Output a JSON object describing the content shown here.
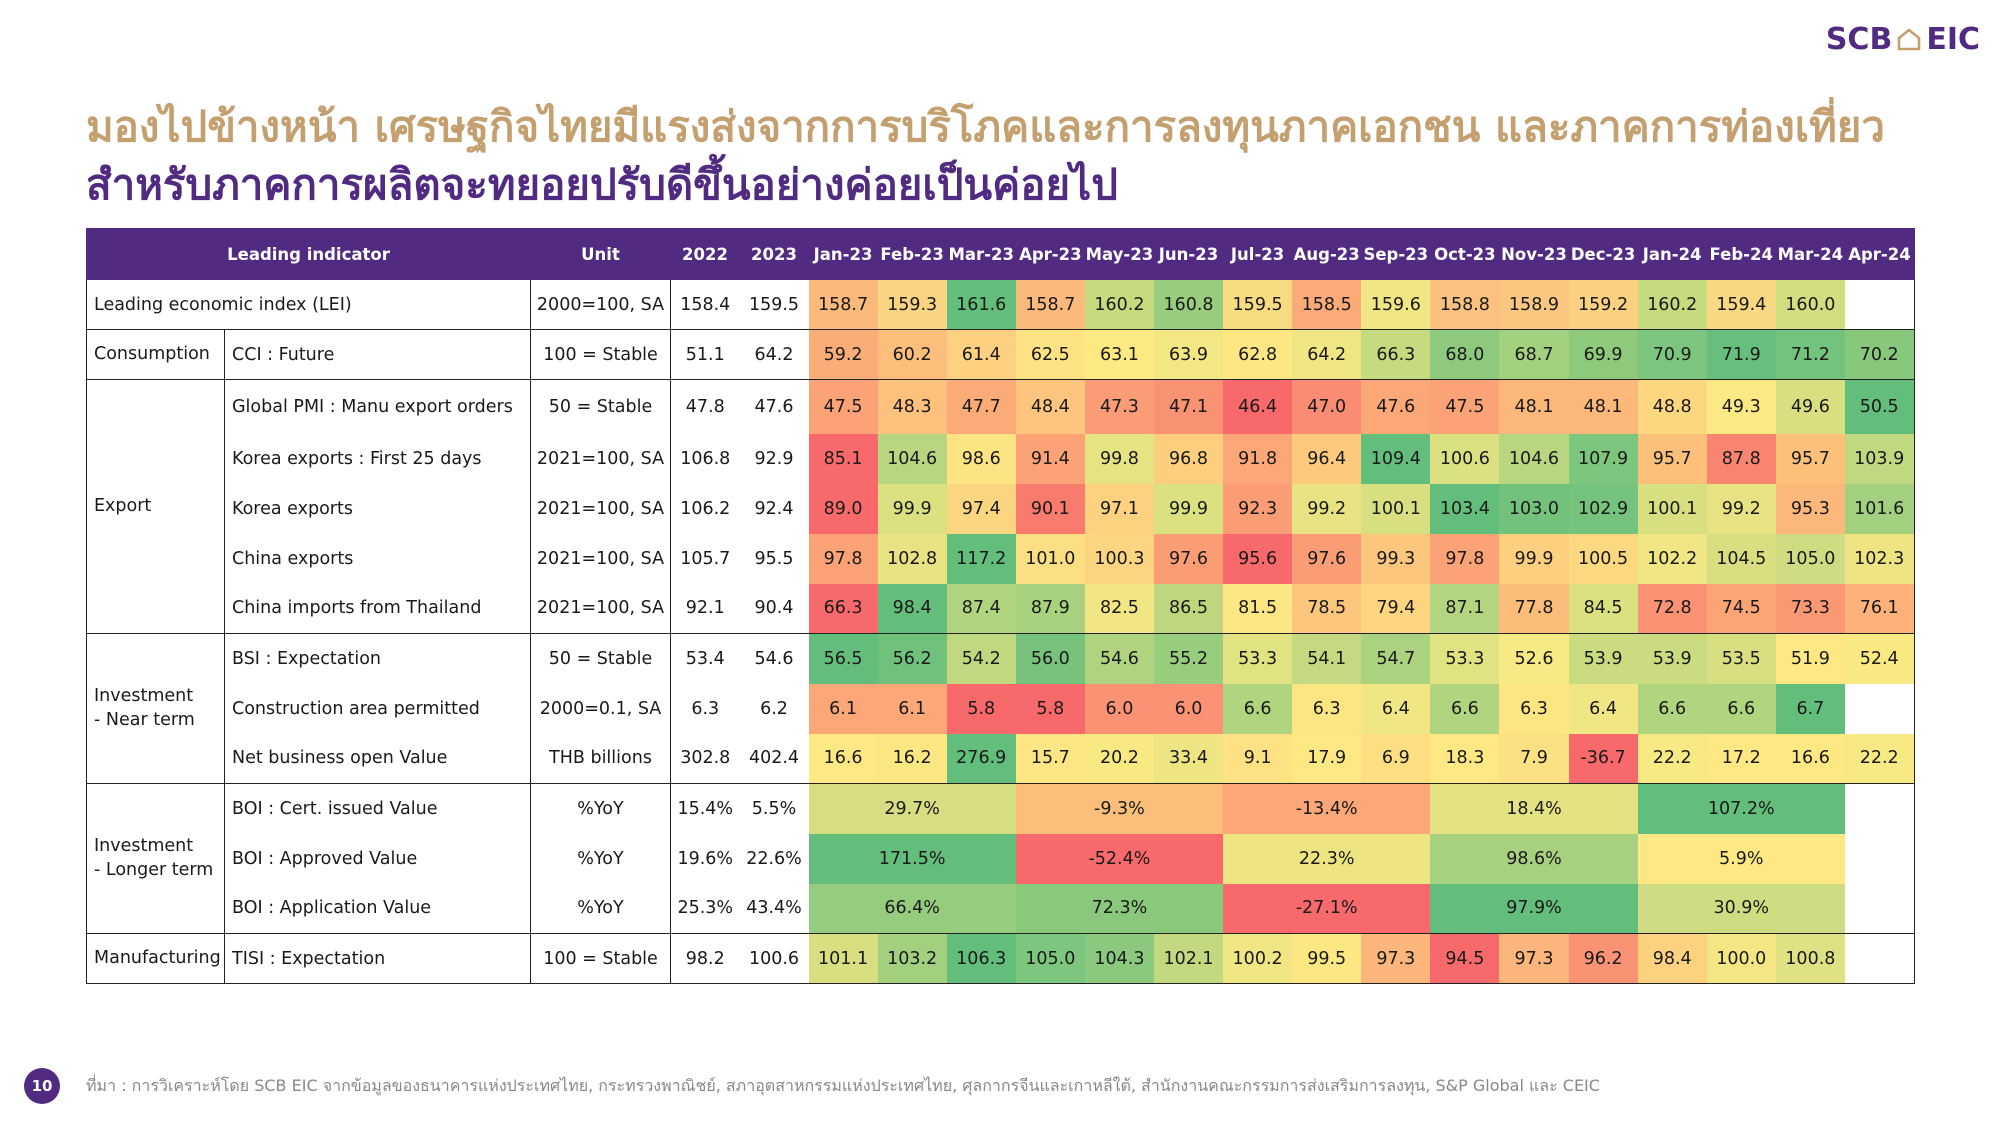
{
  "logo": {
    "left": "SCB",
    "right": "EIC"
  },
  "title_line1": "มองไปข้างหน้า เศรษฐกิจไทยมีแรงส่งจากการบริโภคและการลงทุนภาคเอกชน และภาคการท่องเที่ยว",
  "title_line2": "สำหรับภาคการผลิตจะทยอยปรับดีขึ้นอย่างค่อยเป็นค่อยไป",
  "table": {
    "header": {
      "indicator": "Leading indicator",
      "unit": "Unit",
      "years": [
        "2022",
        "2023"
      ],
      "months": [
        "Jan-23",
        "Feb-23",
        "Mar-23",
        "Apr-23",
        "May-23",
        "Jun-23",
        "Jul-23",
        "Aug-23",
        "Sep-23",
        "Oct-23",
        "Nov-23",
        "Dec-23",
        "Jan-24",
        "Feb-24",
        "Mar-24",
        "Apr-24"
      ]
    },
    "rows": [
      {
        "group": "Leading economic index (LEI)",
        "name": "",
        "unit": "2000=100, SA",
        "years": [
          "158.4",
          "159.5"
        ],
        "cells": [
          [
            "158.7",
            "#fbb97c"
          ],
          [
            "159.3",
            "#f9d482"
          ],
          [
            "161.6",
            "#63be7b"
          ],
          [
            "158.7",
            "#fbb97c"
          ],
          [
            "160.2",
            "#c6da7f"
          ],
          [
            "160.8",
            "#98cd7d"
          ],
          [
            "159.5",
            "#f8dc82"
          ],
          [
            "158.5",
            "#fbab77"
          ],
          [
            "159.6",
            "#f0e683"
          ],
          [
            "158.8",
            "#fbc17e"
          ],
          [
            "158.9",
            "#fbc780"
          ],
          [
            "159.2",
            "#fad180"
          ],
          [
            "160.2",
            "#c6da7f"
          ],
          [
            "159.4",
            "#f8d883"
          ],
          [
            "160.0",
            "#d2de80"
          ],
          [
            "",
            ""
          ]
        ]
      },
      {
        "group": "Consumption",
        "name": "CCI : Future",
        "unit": "100 = Stable",
        "years": [
          "51.1",
          "64.2"
        ],
        "cells": [
          [
            "59.2",
            "#fbad78"
          ],
          [
            "60.2",
            "#fcbf7b"
          ],
          [
            "61.4",
            "#fdd17f"
          ],
          [
            "62.5",
            "#ffe283"
          ],
          [
            "63.1",
            "#fde982"
          ],
          [
            "63.9",
            "#f3e783"
          ],
          [
            "62.8",
            "#fde782"
          ],
          [
            "64.2",
            "#efe683"
          ],
          [
            "66.3",
            "#c6da7f"
          ],
          [
            "68.0",
            "#8dca7e"
          ],
          [
            "68.7",
            "#a3d17e"
          ],
          [
            "69.9",
            "#8ec97c"
          ],
          [
            "70.9",
            "#7bc57d"
          ],
          [
            "71.9",
            "#66bf7c"
          ],
          [
            "71.2",
            "#74c37c"
          ],
          [
            "70.2",
            "#88c87c"
          ]
        ]
      },
      {
        "group": "Export",
        "name": "Global PMI : Manu export orders",
        "unit": "50 = Stable",
        "years": [
          "47.8",
          "47.6"
        ],
        "cells": [
          [
            "47.5",
            "#fba276"
          ],
          [
            "48.3",
            "#fdc07d"
          ],
          [
            "47.7",
            "#fbab78"
          ],
          [
            "48.4",
            "#fdc57e"
          ],
          [
            "47.3",
            "#fa9c75"
          ],
          [
            "47.1",
            "#f99273"
          ],
          [
            "46.4",
            "#f8696b"
          ],
          [
            "47.0",
            "#f98c72"
          ],
          [
            "47.6",
            "#fba777"
          ],
          [
            "47.5",
            "#fba276"
          ],
          [
            "48.1",
            "#fcb87b"
          ],
          [
            "48.1",
            "#fcb87b"
          ],
          [
            "48.8",
            "#fdd680"
          ],
          [
            "49.3",
            "#fbe983"
          ],
          [
            "49.6",
            "#d8df81"
          ],
          [
            "50.5",
            "#63be7b"
          ]
        ]
      },
      {
        "group": "",
        "name": "Korea exports : First 25 days",
        "unit": "2021=100, SA",
        "years": [
          "106.8",
          "92.9"
        ],
        "cells": [
          [
            "85.1",
            "#f8696b"
          ],
          [
            "104.6",
            "#b8d680"
          ],
          [
            "98.6",
            "#fde482"
          ],
          [
            "91.4",
            "#fba276"
          ],
          [
            "99.8",
            "#e6e383"
          ],
          [
            "96.8",
            "#fdce7e"
          ],
          [
            "91.8",
            "#fba777"
          ],
          [
            "96.4",
            "#fdca7d"
          ],
          [
            "109.4",
            "#63be7b"
          ],
          [
            "100.6",
            "#dbe081"
          ],
          [
            "104.6",
            "#b8d680"
          ],
          [
            "107.9",
            "#7dc67d"
          ],
          [
            "95.7",
            "#fdc07b"
          ],
          [
            "87.8",
            "#f98470"
          ],
          [
            "95.7",
            "#fdc07b"
          ],
          [
            "103.9",
            "#c0d880"
          ]
        ]
      },
      {
        "group": "",
        "name": "Korea exports",
        "unit": "2021=100, SA",
        "years": [
          "106.2",
          "92.4"
        ],
        "cells": [
          [
            "89.0",
            "#f8696b"
          ],
          [
            "99.9",
            "#dbe081"
          ],
          [
            "97.4",
            "#fcd580"
          ],
          [
            "90.1",
            "#f97b6e"
          ],
          [
            "97.1",
            "#fcd17f"
          ],
          [
            "99.9",
            "#dbe081"
          ],
          [
            "92.3",
            "#fa9d75"
          ],
          [
            "99.2",
            "#e8e382"
          ],
          [
            "100.1",
            "#d7df81"
          ],
          [
            "103.4",
            "#63be7b"
          ],
          [
            "103.0",
            "#72c27c"
          ],
          [
            "102.9",
            "#75c37c"
          ],
          [
            "100.1",
            "#d7df81"
          ],
          [
            "99.2",
            "#e8e382"
          ],
          [
            "95.3",
            "#fcb87b"
          ],
          [
            "101.6",
            "#a3d07f"
          ]
        ]
      },
      {
        "group": "",
        "name": "China exports",
        "unit": "2021=100, SA",
        "years": [
          "105.7",
          "95.5"
        ],
        "cells": [
          [
            "97.8",
            "#fba276"
          ],
          [
            "102.8",
            "#e7e382"
          ],
          [
            "117.2",
            "#63be7b"
          ],
          [
            "101.0",
            "#fcdf82"
          ],
          [
            "100.3",
            "#fcd580"
          ],
          [
            "97.6",
            "#fa9d75"
          ],
          [
            "95.6",
            "#f8696b"
          ],
          [
            "97.6",
            "#fa9d75"
          ],
          [
            "99.3",
            "#fcc67d"
          ],
          [
            "97.8",
            "#fba276"
          ],
          [
            "99.9",
            "#fcd07f"
          ],
          [
            "100.5",
            "#fcd880"
          ],
          [
            "102.2",
            "#f0e683"
          ],
          [
            "104.5",
            "#d7df81"
          ],
          [
            "105.0",
            "#cfdc81"
          ],
          [
            "102.3",
            "#eee582"
          ]
        ]
      },
      {
        "group": "",
        "name": "China imports from Thailand",
        "unit": "2021=100, SA",
        "years": [
          "92.1",
          "90.4"
        ],
        "cells": [
          [
            "66.3",
            "#f8696b"
          ],
          [
            "98.4",
            "#63be7b"
          ],
          [
            "87.4",
            "#b1d47f"
          ],
          [
            "87.9",
            "#a9d27e"
          ],
          [
            "82.5",
            "#f1e683"
          ],
          [
            "86.5",
            "#bed77f"
          ],
          [
            "81.5",
            "#fde782"
          ],
          [
            "78.5",
            "#fcc67d"
          ],
          [
            "79.4",
            "#fdd47f"
          ],
          [
            "87.1",
            "#b4d57f"
          ],
          [
            "77.8",
            "#fcbd7b"
          ],
          [
            "84.5",
            "#dbe081"
          ],
          [
            "72.8",
            "#fa9273"
          ],
          [
            "74.5",
            "#fba576"
          ],
          [
            "73.3",
            "#fa9873"
          ],
          [
            "76.1",
            "#fcb27a"
          ]
        ]
      },
      {
        "group": "Investment\n- Near term",
        "name": "BSI : Expectation",
        "unit": "50 = Stable",
        "years": [
          "53.4",
          "54.6"
        ],
        "cells": [
          [
            "56.5",
            "#63be7b"
          ],
          [
            "56.2",
            "#70c17c"
          ],
          [
            "54.2",
            "#c0d880"
          ],
          [
            "56.0",
            "#77c37c"
          ],
          [
            "54.6",
            "#afd37f"
          ],
          [
            "55.2",
            "#99cd7e"
          ],
          [
            "53.3",
            "#e1e282"
          ],
          [
            "54.1",
            "#c4d980"
          ],
          [
            "54.7",
            "#abd27f"
          ],
          [
            "53.3",
            "#e1e282"
          ],
          [
            "52.6",
            "#f7e983"
          ],
          [
            "53.9",
            "#cadb80"
          ],
          [
            "53.9",
            "#cadb80"
          ],
          [
            "53.5",
            "#d8df81"
          ],
          [
            "51.9",
            "#fde883"
          ],
          [
            "52.4",
            "#f9e983"
          ]
        ]
      },
      {
        "group": "",
        "name": "Construction area permitted",
        "unit": "2000=0.1, SA",
        "years": [
          "6.3",
          "6.2"
        ],
        "cells": [
          [
            "6.1",
            "#fba777"
          ],
          [
            "6.1",
            "#fba777"
          ],
          [
            "5.8",
            "#f8696b"
          ],
          [
            "5.8",
            "#f8696b"
          ],
          [
            "6.0",
            "#fa9273"
          ],
          [
            "6.0",
            "#fa9273"
          ],
          [
            "6.6",
            "#b1d47f"
          ],
          [
            "6.3",
            "#fde582"
          ],
          [
            "6.4",
            "#f0e683"
          ],
          [
            "6.6",
            "#b1d47f"
          ],
          [
            "6.3",
            "#fde582"
          ],
          [
            "6.4",
            "#f0e683"
          ],
          [
            "6.6",
            "#b1d47f"
          ],
          [
            "6.6",
            "#b1d47f"
          ],
          [
            "6.7",
            "#63be7b"
          ],
          [
            "",
            ""
          ]
        ]
      },
      {
        "group": "",
        "name": "Net business open Value",
        "unit": "THB billions",
        "years": [
          "302.8",
          "402.4"
        ],
        "cells": [
          [
            "16.6",
            "#fde883"
          ],
          [
            "16.2",
            "#fde783"
          ],
          [
            "276.9",
            "#63be7b"
          ],
          [
            "15.7",
            "#fde683"
          ],
          [
            "20.2",
            "#f9e983"
          ],
          [
            "33.4",
            "#eee582"
          ],
          [
            "9.1",
            "#fde182"
          ],
          [
            "17.9",
            "#fde883"
          ],
          [
            "6.9",
            "#fddf82"
          ],
          [
            "18.3",
            "#fde883"
          ],
          [
            "7.9",
            "#fde082"
          ],
          [
            "-36.7",
            "#f8696b"
          ],
          [
            "22.2",
            "#f7e983"
          ],
          [
            "17.2",
            "#fde883"
          ],
          [
            "16.6",
            "#fde883"
          ],
          [
            "22.2",
            "#f7e983"
          ]
        ]
      },
      {
        "group": "Investment\n- Longer term",
        "name": "BOI : Cert. issued Value",
        "unit": "%YoY",
        "years": [
          "15.4%",
          "5.5%"
        ],
        "merged": [
          [
            "29.7%",
            "#d6de81"
          ],
          [
            "-9.3%",
            "#fcbf7b"
          ],
          [
            "-13.4%",
            "#fba777"
          ],
          [
            "18.4%",
            "#e4e282"
          ],
          [
            "107.2%",
            "#63be7b"
          ]
        ]
      },
      {
        "group": "",
        "name": "BOI : Approved Value",
        "unit": "%YoY",
        "years": [
          "19.6%",
          "22.6%"
        ],
        "merged": [
          [
            "171.5%",
            "#63be7b"
          ],
          [
            "-52.4%",
            "#f8696b"
          ],
          [
            "22.3%",
            "#ece582"
          ],
          [
            "98.6%",
            "#a7d07f"
          ],
          [
            "5.9%",
            "#fde883"
          ]
        ]
      },
      {
        "group": "",
        "name": "BOI : Application Value",
        "unit": "%YoY",
        "years": [
          "25.3%",
          "43.4%"
        ],
        "merged": [
          [
            "66.4%",
            "#96cc7e"
          ],
          [
            "72.3%",
            "#8ac97d"
          ],
          [
            "-27.1%",
            "#f8696b"
          ],
          [
            "97.9%",
            "#63be7b"
          ],
          [
            "30.9%",
            "#cfdc81"
          ]
        ]
      },
      {
        "group": "Manufacturing",
        "name": "TISI : Expectation",
        "unit": "100 = Stable",
        "years": [
          "98.2",
          "100.6"
        ],
        "cells": [
          [
            "101.1",
            "#d8df81"
          ],
          [
            "103.2",
            "#a3d07f"
          ],
          [
            "106.3",
            "#63be7b"
          ],
          [
            "105.0",
            "#7dc67d"
          ],
          [
            "104.3",
            "#8bca7e"
          ],
          [
            "102.1",
            "#c3d980"
          ],
          [
            "100.2",
            "#f0e683"
          ],
          [
            "99.5",
            "#fde783"
          ],
          [
            "97.3",
            "#fcb67b"
          ],
          [
            "94.5",
            "#f8696b"
          ],
          [
            "97.3",
            "#fcb67b"
          ],
          [
            "96.2",
            "#fa9373"
          ],
          [
            "98.4",
            "#fcd27f"
          ],
          [
            "100.0",
            "#f4e783"
          ],
          [
            "100.8",
            "#e0e182"
          ],
          [
            "",
            ""
          ]
        ]
      }
    ]
  },
  "footer": "ที่มา : การวิเคราะห์โดย SCB EIC จากข้อมูลของธนาคารแห่งประเทศไทย, กระทรวงพาณิชย์, สภาอุตสาหกรรมแห่งประเทศไทย, ศุลกากรจีนและเกาหลีใต้, สำนักงานคณะกรรมการส่งเสริมการลงทุน, S&P Global และ CEIC",
  "page_number": "10"
}
